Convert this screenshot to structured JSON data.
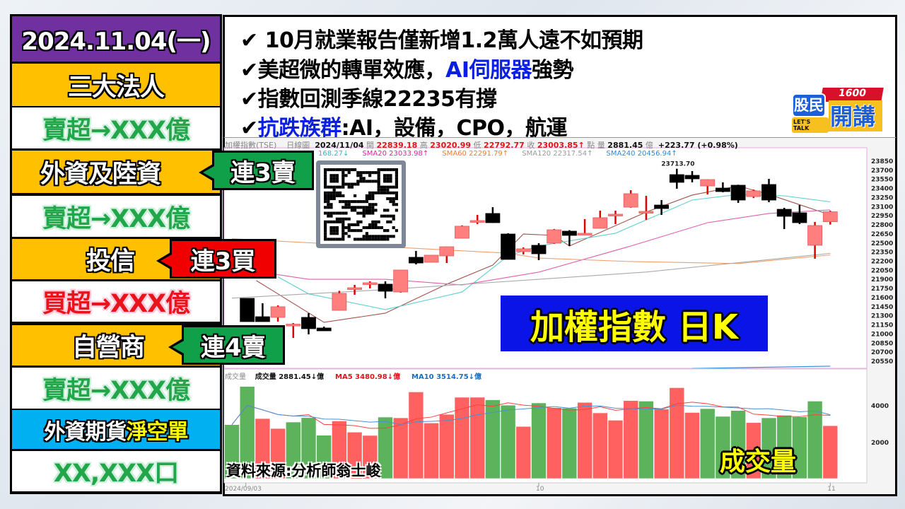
{
  "left_panel": {
    "date": "2024.11.04(一)",
    "section_title": "三大法人",
    "foreign": {
      "label": "外資及陸資",
      "badge": "連3賣",
      "amount": "賣超→XXX億"
    },
    "trust": {
      "label": "投信",
      "badge": "連3買",
      "amount": "買超→XXX億"
    },
    "dealer": {
      "label": "自營商",
      "badge": "連4賣",
      "amount": "賣超→XXX億"
    },
    "futures": {
      "label_a": "外資期貨",
      "label_b": "淨空單",
      "amount": "XX,XXX口"
    }
  },
  "headlines": [
    {
      "check": "✔",
      "parts": [
        "10月就業報告僅新增1.2萬人遠不如預期"
      ]
    },
    {
      "check": "✔",
      "parts": [
        "美超微的轉單效應，",
        "AI伺服器",
        "強勢"
      ]
    },
    {
      "check": "✔",
      "parts": [
        "指數回測季線22235有撐"
      ]
    },
    {
      "check": "✔",
      "parts": [
        "抗跌族群",
        ":AI，設備，CPO，航運"
      ]
    }
  ],
  "logo": {
    "text_a": "股民",
    "text_b": "開講",
    "number": "1600",
    "tagline": "LET'S TALK"
  },
  "chart_header": {
    "name": "加權指數(TSE)",
    "period": "日線圖",
    "date": "2024/11/04",
    "open_label": "開",
    "open": "22839.18",
    "high_label": "高",
    "high": "23020.99",
    "low_label": "低",
    "low": "22792.77",
    "close_label": "收",
    "close": "23003.85↑",
    "point_label": "點",
    "vol_label": "量",
    "volume": "2881.45",
    "vol_unit": "億",
    "change": "+223.77 (+0.98%)"
  },
  "ma_header": [
    {
      "text": "168.27↓",
      "color": "#2ab6c0"
    },
    {
      "text": "SMA20 23033.98↑",
      "color": "#e0209a"
    },
    {
      "text": "SMA60 22291.79↑",
      "color": "#f07a30"
    },
    {
      "text": "SMA120 22317.54↑",
      "color": "#999999"
    },
    {
      "text": "SMA240 20456.94↑",
      "color": "#2a8ad8"
    }
  ],
  "volume_header": {
    "name": "成交量",
    "value": "成交量 2881.45↓億",
    "ma5": "MA5 3480.98↓億",
    "ma10": "MA10 3514.75↓億"
  },
  "overlay": {
    "title": "加權指數 日K",
    "volume_title": "成交量",
    "source": "資料來源:分析師翁士峻"
  },
  "colors": {
    "up": "#ff7f7f",
    "up_wick": "#e00000",
    "down": "#000000",
    "vol_up": "#ff6060",
    "vol_down": "#5cb35c",
    "purple": "#7030a0",
    "gold": "#ffc000",
    "cyan": "#00b0f0"
  },
  "chart_data": [
    {
      "type": "candlestick",
      "title": "加權指數 日K",
      "x_labels": [
        "2024/09/03",
        "10",
        "11"
      ],
      "x_label_index": [
        0,
        19,
        38
      ],
      "ylim": [
        20550,
        23850
      ],
      "y_ticks": [
        23850,
        23700,
        23550,
        23400,
        23250,
        23100,
        22950,
        22800,
        22650,
        22500,
        22350,
        22200,
        22050,
        21900,
        21750,
        21600,
        21450,
        21300,
        21150,
        21000,
        20850,
        20700,
        20550
      ],
      "annotation": {
        "text": "23713.70",
        "index": 29
      },
      "ohlc": [
        null,
        [
          21576,
          21576,
          21192,
          21192
        ],
        [
          21273,
          21495,
          21192,
          21192
        ],
        [
          21262,
          21460,
          21192,
          21437
        ],
        [
          21145,
          21168,
          20923,
          21150
        ],
        [
          21262,
          21331,
          20982,
          21075
        ],
        [
          21087,
          21110,
          21040,
          21040
        ],
        [
          21378,
          21700,
          21378,
          21658
        ],
        [
          21740,
          21798,
          21635,
          21751
        ],
        [
          21810,
          21856,
          21740,
          21833
        ],
        [
          21810,
          21856,
          21576,
          21693
        ],
        [
          21681,
          22043,
          21670,
          22043
        ],
        [
          22253,
          22358,
          22136,
          22159
        ],
        [
          22171,
          22290,
          22171,
          22288
        ],
        [
          22276,
          22430,
          22159,
          22427
        ],
        [
          22567,
          22780,
          22567,
          22766
        ],
        [
          22850,
          22952,
          22801,
          22859
        ],
        [
          22976,
          23080,
          22820,
          22824
        ],
        [
          22637,
          22650,
          22218,
          22218
        ],
        [
          22346,
          22416,
          22300,
          22393
        ],
        [
          22451,
          22486,
          22206,
          22311
        ],
        [
          22486,
          22720,
          22474,
          22707
        ],
        [
          22684,
          22700,
          22439,
          22614
        ],
        [
          22640,
          22882,
          22640,
          22649
        ],
        [
          22731,
          23022,
          22731,
          22906
        ],
        [
          22952,
          23022,
          22801,
          22964
        ],
        [
          23080,
          23360,
          23070,
          23302
        ],
        [
          23000,
          23267,
          22871,
          23010
        ],
        [
          23115,
          23197,
          22952,
          23057
        ],
        [
          23617,
          23714,
          23384,
          23489
        ],
        [
          23605,
          23675,
          23489,
          23547
        ],
        [
          23430,
          23540,
          23290,
          23535
        ],
        [
          23395,
          23489,
          23325,
          23337
        ],
        [
          23442,
          23450,
          23150,
          23197
        ],
        [
          23255,
          23370,
          23230,
          23349
        ],
        [
          23454,
          23547,
          23162,
          23197
        ],
        [
          23045,
          23069,
          22719,
          22929
        ],
        [
          22987,
          23115,
          22801,
          22824
        ],
        [
          22451,
          22836,
          22229,
          22777
        ],
        [
          22839.18,
          23020.99,
          22792.77,
          23003.85
        ]
      ],
      "moving_averages": [
        {
          "name": "SMA5",
          "color": "#a0524a",
          "points": [
            [
              1.6,
              21868
            ],
            [
              6,
              21180
            ],
            [
              10,
              21332
            ],
            [
              14,
              21810
            ],
            [
              17,
              22124
            ],
            [
              19,
              22637
            ],
            [
              21,
              22614
            ],
            [
              22,
              22439
            ],
            [
              27,
              22999
            ],
            [
              30,
              23279
            ],
            [
              33,
              23430
            ],
            [
              35,
              23290
            ],
            [
              39,
              22952
            ]
          ]
        },
        {
          "name": "SMA10",
          "color": "#5fd0d0",
          "points": [
            [
              3,
              21930
            ],
            [
              5,
              21650
            ],
            [
              10,
              21390
            ],
            [
              15,
              21680
            ],
            [
              18,
              22276
            ],
            [
              20,
              22440
            ],
            [
              25,
              22650
            ],
            [
              30,
              23197
            ],
            [
              33,
              23290
            ],
            [
              36,
              23267
            ],
            [
              39,
              23168
            ]
          ]
        },
        {
          "name": "SMA20",
          "color": "#e060b0",
          "points": [
            [
              1,
              22043
            ],
            [
              5,
              21890
            ],
            [
              10,
              21890
            ],
            [
              15,
              21797
            ],
            [
              20,
              22008
            ],
            [
              26,
              22439
            ],
            [
              31,
              22824
            ],
            [
              35,
              22976
            ],
            [
              39,
              23034
            ]
          ]
        },
        {
          "name": "SMA60",
          "color": "#f0a070",
          "points": [
            [
              0,
              22560
            ],
            [
              18,
              22320
            ],
            [
              20,
              22240
            ],
            [
              26,
              22183
            ],
            [
              33,
              22150
            ],
            [
              39,
              22292
            ]
          ]
        },
        {
          "name": "SMA120",
          "color": "#aaaaaa",
          "points": [
            [
              0,
              21580
            ],
            [
              10,
              21720
            ],
            [
              20,
              21890
            ],
            [
              27,
              22010
            ],
            [
              39,
              22318
            ]
          ]
        },
        {
          "name": "SMA240",
          "color": "#2a8ad8",
          "points": [
            [
              30,
              20420
            ],
            [
              39,
              20457
            ]
          ]
        }
      ]
    },
    {
      "type": "bar",
      "title": "成交量",
      "ylabel_unit": "億",
      "y_ticks": [
        4000,
        2000
      ],
      "values": [
        2940,
        5020,
        3270,
        2730,
        3080,
        3320,
        2360,
        3140,
        2530,
        2350,
        3350,
        3310,
        4720,
        3030,
        3500,
        4430,
        4430,
        4290,
        4000,
        2840,
        4120,
        3860,
        3840,
        4150,
        3580,
        3180,
        4250,
        4220,
        3790,
        4950,
        3600,
        3810,
        3390,
        3710,
        3050,
        3310,
        3450,
        3360,
        4220,
        2881.45
      ],
      "up": [
        false,
        false,
        true,
        true,
        false,
        false,
        false,
        true,
        true,
        true,
        false,
        true,
        true,
        true,
        true,
        true,
        true,
        false,
        false,
        true,
        false,
        true,
        false,
        true,
        true,
        true,
        true,
        false,
        true,
        true,
        true,
        false,
        false,
        false,
        true,
        false,
        false,
        false,
        false,
        true
      ],
      "series_lines": [
        "MA5",
        "MA10"
      ]
    }
  ]
}
